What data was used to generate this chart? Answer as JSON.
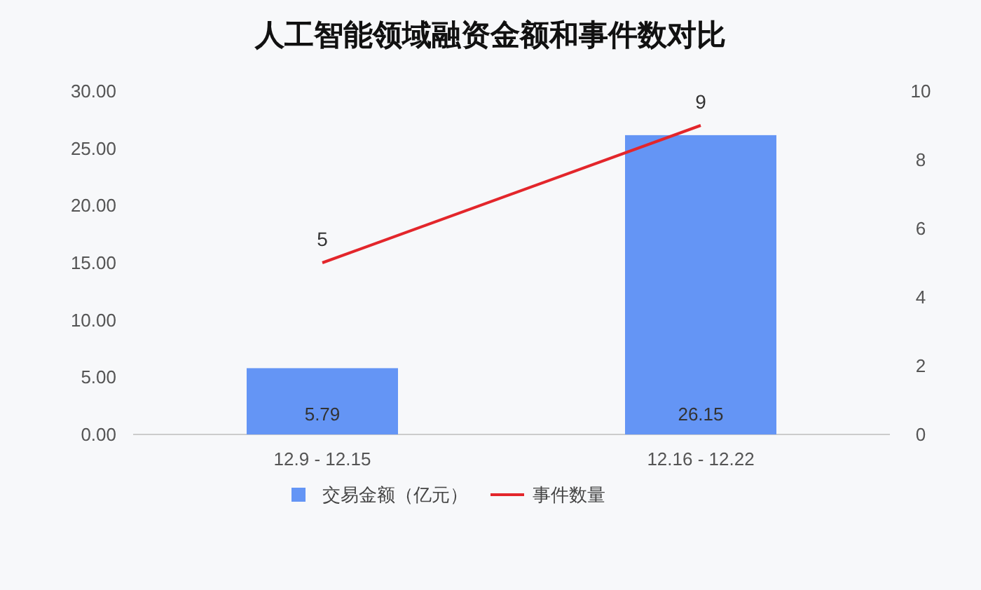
{
  "chart_data": {
    "type": "bar",
    "title": "人工智能领域融资金额和事件数对比",
    "categories": [
      "12.9 - 12.15",
      "12.16 - 12.22"
    ],
    "series": [
      {
        "name": "交易金额（亿元）",
        "color": "#6495f5",
        "values": [
          5.79,
          26.15
        ]
      },
      {
        "name": "事件数量",
        "type": "line",
        "axis": "y2",
        "color": "#e3262b",
        "values": [
          5,
          9
        ]
      }
    ],
    "ylim": [
      0,
      30
    ],
    "yticks": [
      {
        "value": 0,
        "label": "0.00"
      },
      {
        "value": 5,
        "label": "5.00"
      },
      {
        "value": 10,
        "label": "10.00"
      },
      {
        "value": 15,
        "label": "15.00"
      },
      {
        "value": 20,
        "label": "20.00"
      },
      {
        "value": 25,
        "label": "25.00"
      },
      {
        "value": 30,
        "label": "30.00"
      }
    ],
    "y2lim": [
      0,
      10
    ],
    "y2ticks": [
      0,
      2,
      4,
      6,
      8,
      10
    ],
    "data_labels": true,
    "legend": "bottom",
    "marker": "none",
    "grid": false
  }
}
